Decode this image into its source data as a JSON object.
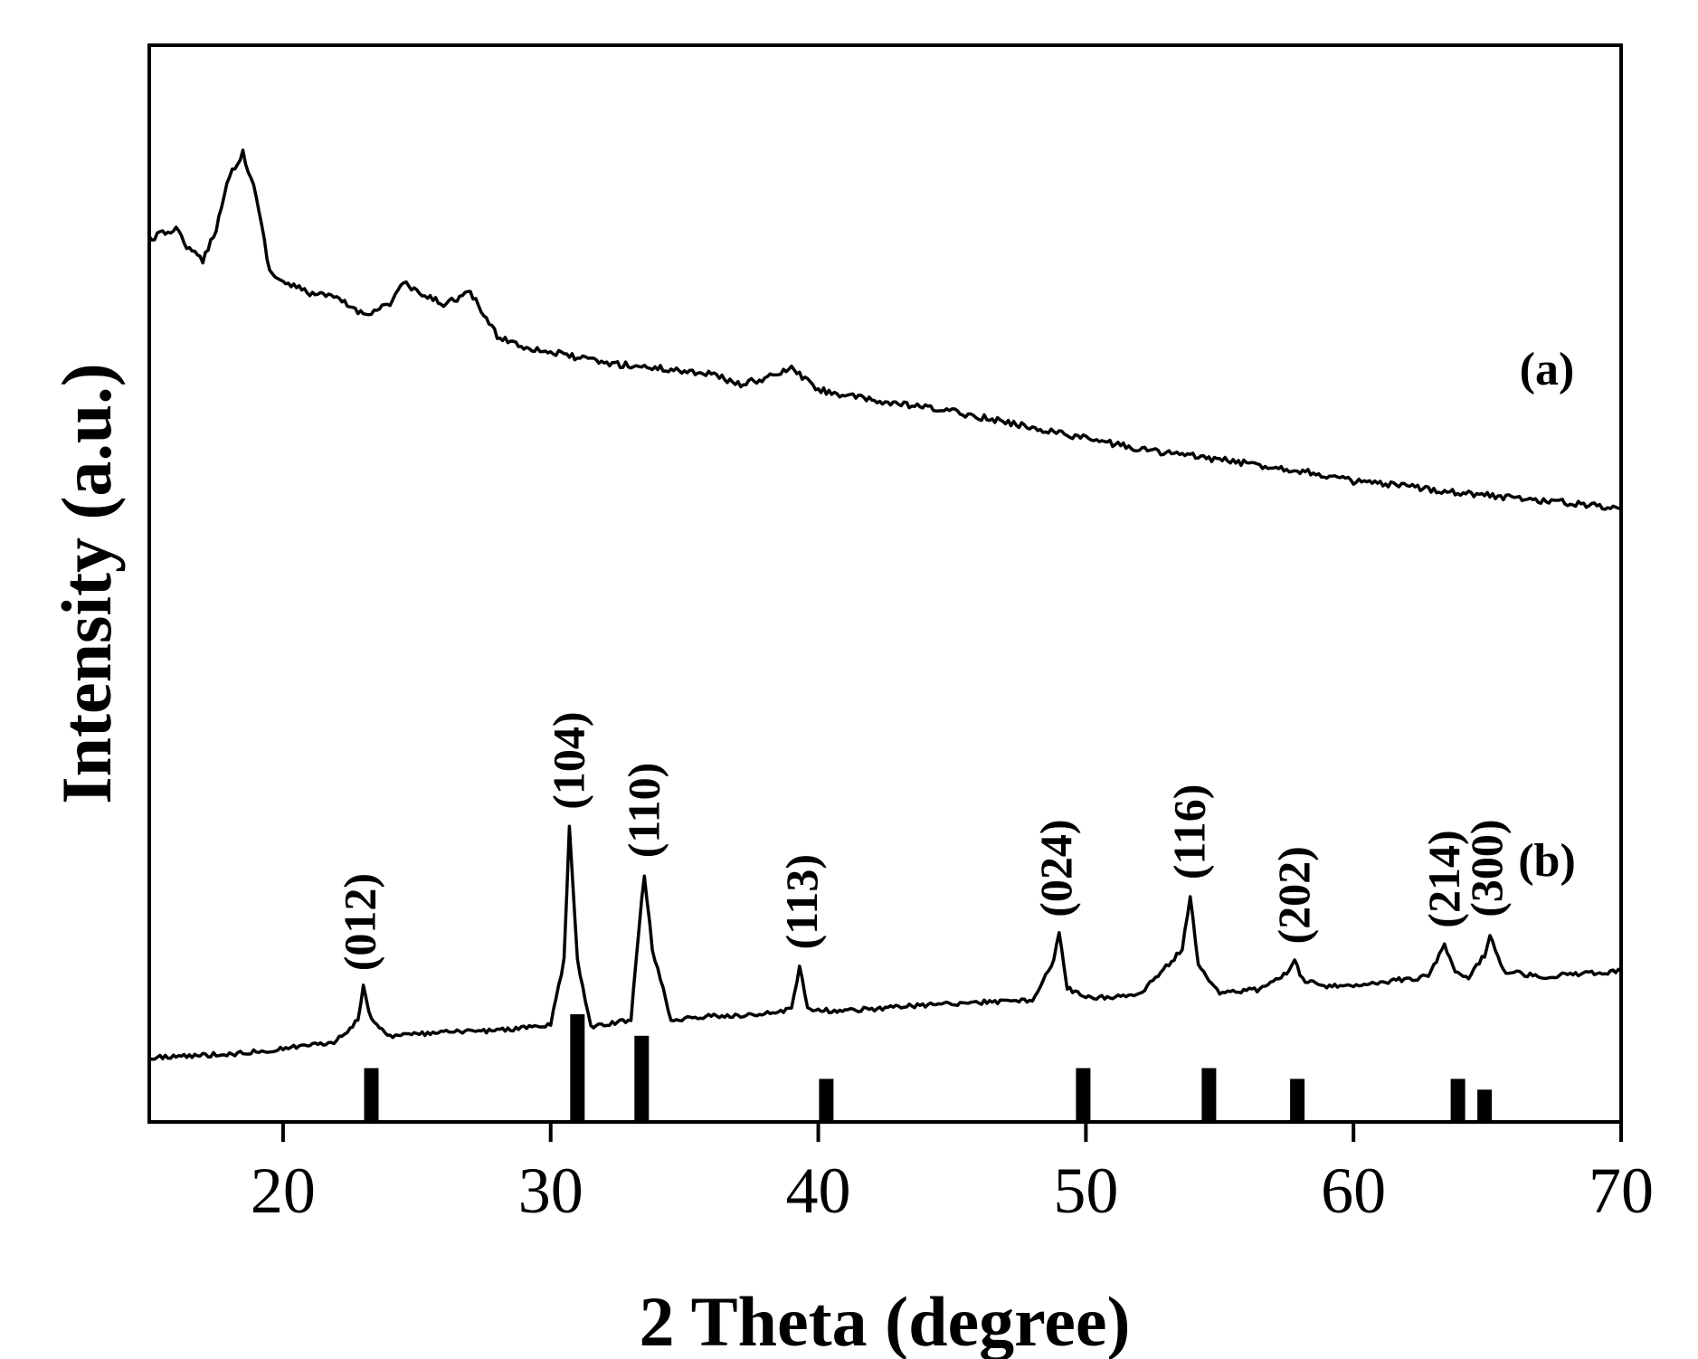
{
  "chart_data": {
    "type": "line",
    "title": "",
    "xlabel": "2 Theta (degree)",
    "ylabel": "Intensity (a.u.)",
    "xlim": [
      15,
      70
    ],
    "ylim": [
      0,
      100
    ],
    "xticks": [
      20,
      30,
      40,
      50,
      60,
      70
    ],
    "xtick_labels": [
      "20",
      "30",
      "40",
      "50",
      "60",
      "70"
    ],
    "yticks_shown": false,
    "grid": false,
    "series": [
      {
        "name": "(a)",
        "x": [
          15,
          16,
          16.5,
          17,
          17.5,
          18,
          18.5,
          19,
          19.5,
          20,
          21,
          22,
          23,
          24,
          24.5,
          25,
          26,
          27,
          28,
          29,
          30,
          32,
          34,
          36,
          37,
          38,
          39,
          40,
          42,
          45,
          48,
          50,
          52,
          55,
          58,
          60,
          62,
          65,
          68,
          70
        ],
        "y": [
          82,
          83,
          81,
          80,
          83,
          88,
          90,
          86,
          79,
          78,
          77,
          76.5,
          75,
          76,
          78,
          77,
          76,
          77,
          73,
          72,
          71.5,
          70.5,
          70,
          69.5,
          68.5,
          69,
          70,
          68,
          67,
          66,
          64.5,
          63.5,
          62.5,
          61.5,
          60.5,
          59.5,
          59,
          58.2,
          57.5,
          57
        ]
      },
      {
        "name": "(b)",
        "x": [
          15,
          18,
          20,
          22,
          22.8,
          23,
          23.3,
          24,
          26,
          28,
          30,
          30.5,
          30.7,
          31,
          31.5,
          32,
          33,
          33.3,
          33.5,
          33.8,
          34.5,
          36,
          38,
          39,
          39.3,
          39.6,
          40.5,
          42,
          45,
          48,
          48.8,
          49,
          49.3,
          50,
          52,
          53.6,
          53.9,
          54.2,
          55,
          56.5,
          57.6,
          57.8,
          58.1,
          59,
          61,
          62.8,
          63.4,
          63.8,
          64.3,
          64.9,
          65.1,
          65.6,
          67,
          70
        ],
        "y": [
          6,
          6.3,
          6.8,
          7.5,
          9.5,
          12.5,
          9.5,
          8,
          8.3,
          8.5,
          9,
          15,
          27.5,
          15,
          8.8,
          9,
          9.5,
          18,
          23,
          16,
          9.5,
          9.8,
          10,
          10.5,
          14.5,
          10.5,
          10.3,
          10.5,
          11,
          11.3,
          15,
          17.5,
          12.5,
          11.5,
          11.8,
          16,
          21,
          14.5,
          12,
          12.3,
          14,
          15,
          13.2,
          12.5,
          13,
          13.5,
          16.5,
          14,
          13.5,
          15.5,
          17.5,
          14,
          13.5,
          14
        ]
      }
    ],
    "reference_bars": {
      "x": [
        23.3,
        31.0,
        33.4,
        40.3,
        49.9,
        54.6,
        57.9,
        63.9,
        64.9
      ],
      "heights": [
        5.0,
        10.0,
        8.0,
        4.0,
        5.0,
        5.0,
        4.0,
        4.0,
        3.0
      ]
    },
    "peak_labels": [
      {
        "label": "(012)",
        "x": 22.9
      },
      {
        "label": "(104)",
        "x": 30.7
      },
      {
        "label": "(110)",
        "x": 33.5
      },
      {
        "label": "(113)",
        "x": 39.4
      },
      {
        "label": "(024)",
        "x": 48.9
      },
      {
        "label": "(116)",
        "x": 53.9
      },
      {
        "label": "(202)",
        "x": 57.8
      },
      {
        "label": "(214)",
        "x": 63.4
      },
      {
        "label": "(300)",
        "x": 65.0
      }
    ],
    "curve_labels": [
      "(a)",
      "(b)"
    ]
  }
}
